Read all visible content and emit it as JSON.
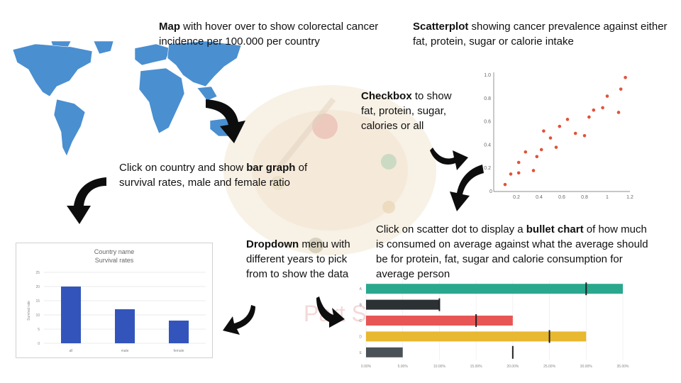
{
  "annotations": {
    "map": {
      "bold": "Map",
      "rest": " with hover over to show colorectal cancer incidence per 100.000 per country"
    },
    "scatter": {
      "bold": "Scatterplot",
      "rest": " showing cancer prevalence against either fat, protein, sugar or calorie intake"
    },
    "checkbox": {
      "bold": "Checkbox",
      "rest": " to show fat, protein, sugar, calories or all"
    },
    "bar": {
      "pre": "Click on country and show ",
      "bold": "bar graph",
      "rest": " of survival rates, male and female ratio"
    },
    "dropdown": {
      "bold": "Dropdown",
      "rest": " menu with different years to pick from to show the data"
    },
    "bullet": {
      "pre": "Click on scatter dot to display a ",
      "bold": "bullet chart",
      "rest": " of how much is consumed on average against what the average should be for protein, fat, sugar and calorie consumption for average person"
    }
  },
  "watermark": "Part S",
  "colors": {
    "map": "#4a8fd0",
    "bar": "#3355bb",
    "scatter": "#e0533a",
    "arrow": "#0d0d0d"
  },
  "chart_data": [
    {
      "type": "bar",
      "title": "Country name",
      "subtitle": "Survival rates",
      "ylabel": "Survival rate",
      "categories": [
        "all",
        "male",
        "female"
      ],
      "values": [
        20,
        12,
        8
      ],
      "yticks": [
        0,
        5,
        10,
        15,
        20,
        25
      ],
      "ylim": [
        0,
        25
      ]
    },
    {
      "type": "scatter",
      "xlim": [
        0,
        1.2
      ],
      "ylim": [
        0,
        1.0
      ],
      "xticks": [
        0,
        0.2,
        0.4,
        0.6,
        0.8,
        1.0,
        1.2
      ],
      "yticks": [
        0,
        0.2,
        0.4,
        0.6,
        0.8,
        1.0
      ],
      "points": [
        [
          0.1,
          0.06
        ],
        [
          0.15,
          0.15
        ],
        [
          0.22,
          0.16
        ],
        [
          0.22,
          0.25
        ],
        [
          0.28,
          0.34
        ],
        [
          0.35,
          0.18
        ],
        [
          0.38,
          0.3
        ],
        [
          0.42,
          0.36
        ],
        [
          0.44,
          0.52
        ],
        [
          0.5,
          0.46
        ],
        [
          0.55,
          0.38
        ],
        [
          0.58,
          0.56
        ],
        [
          0.65,
          0.62
        ],
        [
          0.72,
          0.5
        ],
        [
          0.8,
          0.48
        ],
        [
          0.84,
          0.64
        ],
        [
          0.88,
          0.7
        ],
        [
          0.96,
          0.72
        ],
        [
          1.0,
          0.82
        ],
        [
          1.1,
          0.68
        ],
        [
          1.12,
          0.88
        ],
        [
          1.16,
          0.98
        ]
      ]
    },
    {
      "type": "bar",
      "orientation": "horizontal-bullet",
      "categories": [
        "A",
        "B",
        "C",
        "D",
        "E"
      ],
      "values": [
        35,
        10,
        20,
        30,
        5
      ],
      "targets": [
        30,
        10,
        15,
        25,
        20
      ],
      "bar_colors": [
        "#2aa88e",
        "#2c3133",
        "#e85555",
        "#e8b830",
        "#4a5257"
      ],
      "xticks": [
        "0.00%",
        "5.00%",
        "10.00%",
        "15.00%",
        "20.00%",
        "25.00%",
        "30.00%",
        "35.00%"
      ],
      "xlim": [
        0,
        35
      ]
    }
  ]
}
